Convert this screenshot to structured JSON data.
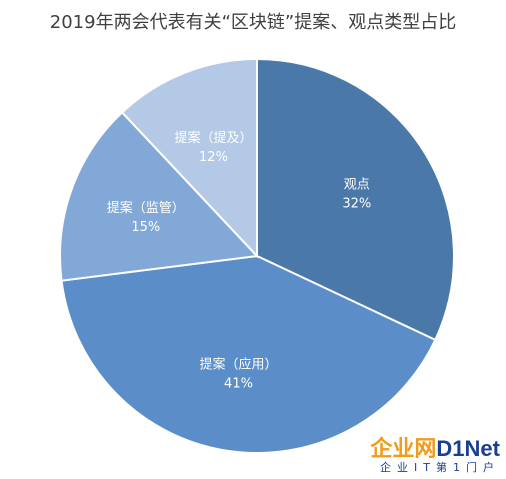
{
  "chart_data": {
    "type": "pie",
    "title": "2019年两会代表有关“区块链”提案、观点类型占比",
    "slices": [
      {
        "label": "观点",
        "value": 32,
        "value_label": "32%",
        "color": "#4a78a8"
      },
      {
        "label": "提案（应用）",
        "value": 41,
        "value_label": "41%",
        "color": "#5b8ec8"
      },
      {
        "label": "提案（监管）",
        "value": 15,
        "value_label": "15%",
        "color": "#82a8d8"
      },
      {
        "label": "提案（提及）",
        "value": 12,
        "value_label": "12%",
        "color": "#b4c9e6"
      }
    ]
  },
  "watermark": {
    "main_cn": "企业网",
    "main_en": "D1Net",
    "sub": "企业IT第1门户"
  }
}
